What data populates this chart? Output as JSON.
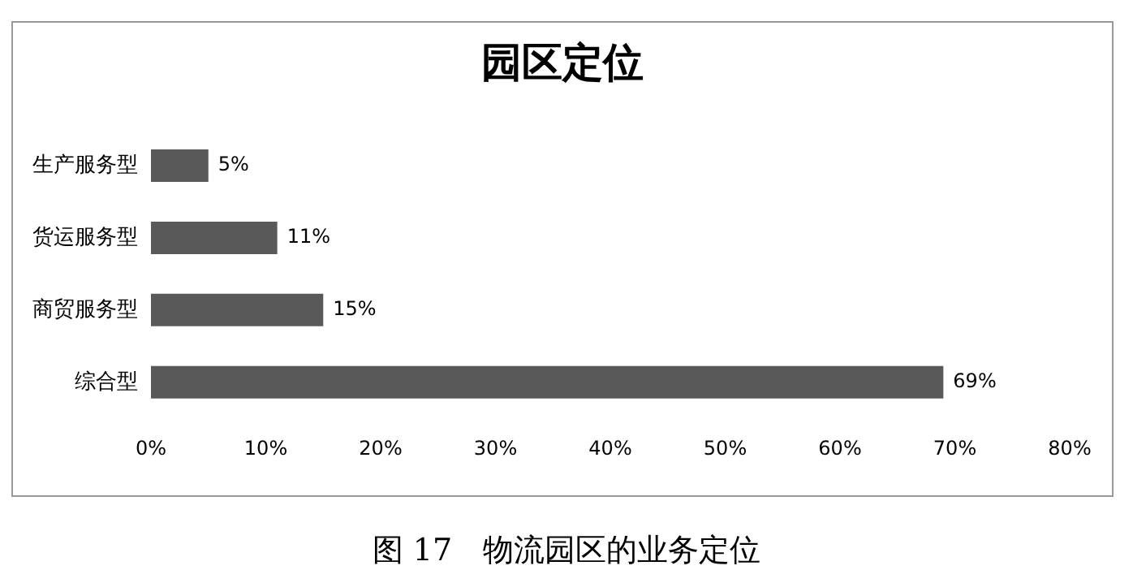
{
  "chart_data": {
    "type": "bar",
    "orientation": "horizontal",
    "title": "园区定位",
    "categories": [
      "生产服务型",
      "货运服务型",
      "商贸服务型",
      "综合型"
    ],
    "values": [
      5,
      11,
      15,
      69
    ],
    "color": "#595959",
    "value_labels": [
      "5%",
      "11%",
      "15%",
      "69%"
    ],
    "xlim": [
      0,
      80
    ],
    "xticks": [
      {
        "value": 0,
        "label": "0%"
      },
      {
        "value": 10,
        "label": "10%"
      },
      {
        "value": 20,
        "label": "20%"
      },
      {
        "value": 30,
        "label": "30%"
      },
      {
        "value": 40,
        "label": "40%"
      },
      {
        "value": 50,
        "label": "50%"
      },
      {
        "value": 60,
        "label": "60%"
      },
      {
        "value": 70,
        "label": "70%"
      },
      {
        "value": 80,
        "label": "80%"
      }
    ],
    "grid": false,
    "legend": false,
    "annotations": [
      "图 17　物流园区的业务定位"
    ]
  }
}
